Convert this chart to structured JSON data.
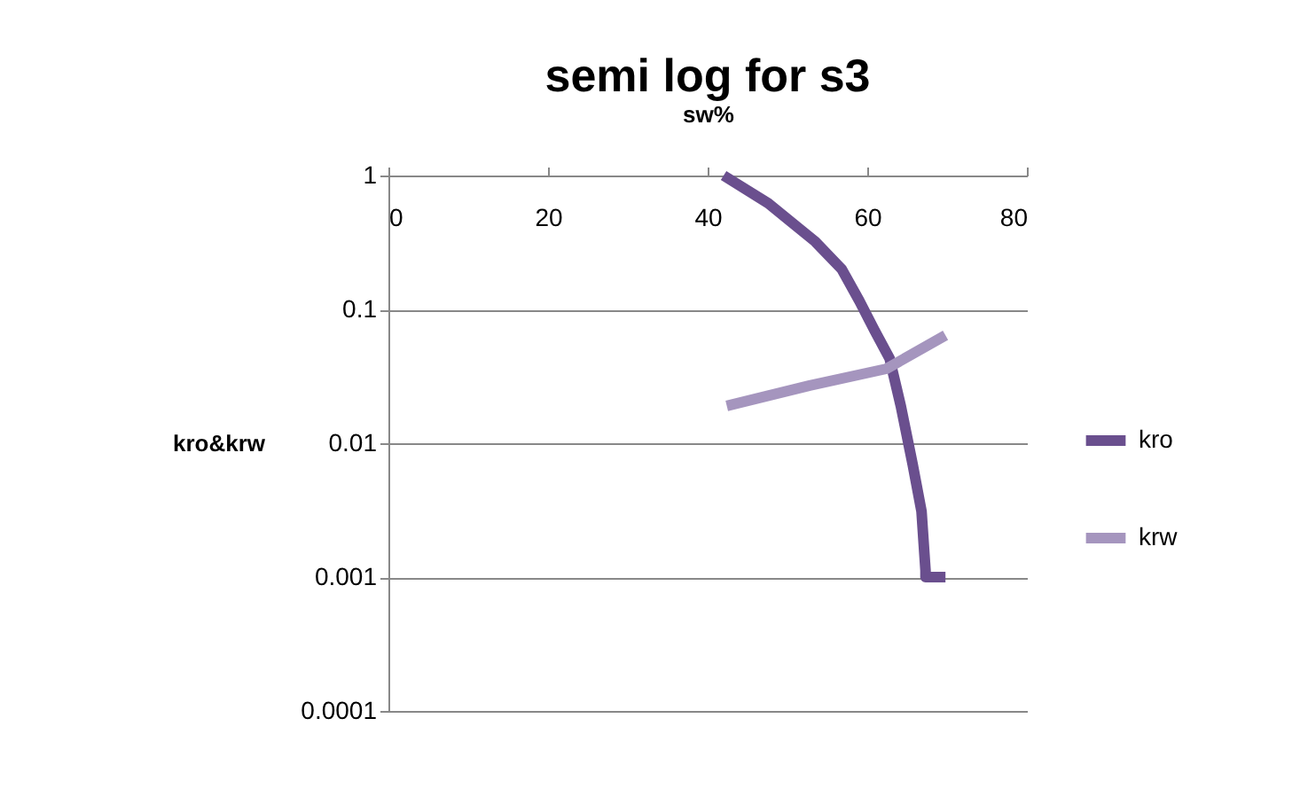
{
  "chart_data": {
    "type": "line",
    "title": "semi log for s3",
    "xlabel": "sw%",
    "ylabel": "kro&krw",
    "log": "y",
    "xlim": [
      0,
      80
    ],
    "xticks": [
      0,
      20,
      40,
      60,
      80
    ],
    "ylim": [
      0.0001,
      1
    ],
    "yticks": [
      0.0001,
      0.001,
      0.01,
      0.1,
      1
    ],
    "grid": "y",
    "legend": "right",
    "marker": "none",
    "line_style": "solid",
    "series": [
      {
        "name": "kro",
        "color": "#6a4f8e",
        "x": [
          42.0,
          47.6,
          53.5,
          56.8,
          59.0,
          60.9,
          62.8,
          64.2,
          65.7,
          66.8,
          67.3,
          67.3,
          69.8
        ],
        "values": [
          1,
          0.62,
          0.32,
          0.2,
          0.116,
          0.07,
          0.043,
          0.019,
          0.0069,
          0.0031,
          0.00112,
          0.001,
          0.001
        ]
      },
      {
        "name": "krw",
        "color": "#a595be",
        "x": [
          42.4,
          52.8,
          62.4,
          69.8
        ],
        "values": [
          0.019,
          0.027,
          0.036,
          0.064
        ]
      }
    ]
  }
}
